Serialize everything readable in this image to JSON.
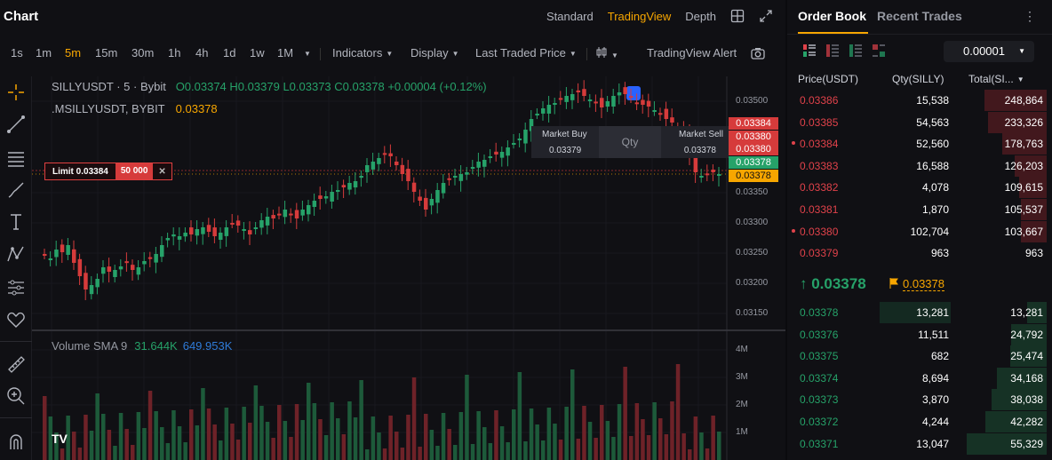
{
  "header": {
    "title": "Chart",
    "views": [
      "Standard",
      "TradingView",
      "Depth"
    ],
    "active_view": "TradingView"
  },
  "toolbar": {
    "timeframes": [
      "1s",
      "1m",
      "5m",
      "15m",
      "30m",
      "1h",
      "4h",
      "1d",
      "1w",
      "1M"
    ],
    "active_timeframe": "5m",
    "indicators": "Indicators",
    "display": "Display",
    "price_type": "Last Traded Price",
    "alert": "TradingView Alert"
  },
  "legend": {
    "symbol": "SILLYUSDT · 5 · Bybit",
    "o": "O0.03374",
    "h": "H0.03379",
    "l": "L0.03373",
    "c": "C0.03378",
    "change": "+0.00004 (+0.12%)",
    "mark_symbol": ".MSILLYUSDT, BYBIT",
    "mark_value": "0.03378"
  },
  "volume": {
    "label": "Volume SMA 9",
    "v1": "31.644K",
    "v2": "649.953K"
  },
  "price_axis": [
    "0.03500",
    "0.03350",
    "0.03300",
    "0.03250",
    "0.03200",
    "0.03150"
  ],
  "volume_axis": [
    "4M",
    "3M",
    "2M",
    "1M"
  ],
  "price_tags": [
    {
      "value": "0.03384",
      "color": "#d63b3b"
    },
    {
      "value": "0.03380",
      "color": "#d63b3b"
    },
    {
      "value": "0.03380",
      "color": "#d63b3b"
    },
    {
      "value": "0.03378",
      "color": "#26a269"
    },
    {
      "value": "0.03378",
      "color": "#f7a600"
    }
  ],
  "limit_order": {
    "label": "Limit 0.03384",
    "qty": "50 000",
    "close": "✕"
  },
  "trade_widget": {
    "buy_label": "Market Buy",
    "buy_price": "0.03379",
    "qty_placeholder": "Qty",
    "sell_label": "Market Sell",
    "sell_price": "0.03378"
  },
  "tv_logo": "TV",
  "order_book": {
    "tabs": [
      "Order Book",
      "Recent Trades"
    ],
    "more": "⋮",
    "tick_size": "0.00001",
    "headers": {
      "price": "Price(USDT)",
      "qty": "Qty(SILLY)",
      "total": "Total(SI..."
    },
    "asks": [
      {
        "price": "0.03386",
        "qty": "15,538",
        "total": "248,864",
        "depth": 1.0,
        "dot": false
      },
      {
        "price": "0.03385",
        "qty": "54,563",
        "total": "233,326",
        "depth": 0.94,
        "dot": false
      },
      {
        "price": "0.03384",
        "qty": "52,560",
        "total": "178,763",
        "depth": 0.72,
        "dot": true
      },
      {
        "price": "0.03383",
        "qty": "16,588",
        "total": "126,203",
        "depth": 0.51,
        "dot": false
      },
      {
        "price": "0.03382",
        "qty": "4,078",
        "total": "109,615",
        "depth": 0.44,
        "dot": false
      },
      {
        "price": "0.03381",
        "qty": "1,870",
        "total": "105,537",
        "depth": 0.42,
        "dot": false
      },
      {
        "price": "0.03380",
        "qty": "102,704",
        "total": "103,667",
        "depth": 0.42,
        "dot": true
      },
      {
        "price": "0.03379",
        "qty": "963",
        "total": "963",
        "depth": 0.0,
        "dot": false
      }
    ],
    "last_price": "↑ 0.03378",
    "mark_price": "0.03378",
    "bids": [
      {
        "price": "0.03378",
        "qty": "13,281",
        "total": "13,281",
        "depth": 0.24,
        "qdepth": 1.0
      },
      {
        "price": "0.03376",
        "qty": "11,511",
        "total": "24,792",
        "depth": 0.45,
        "qdepth": 0.0
      },
      {
        "price": "0.03375",
        "qty": "682",
        "total": "25,474",
        "depth": 0.46,
        "qdepth": 0.0
      },
      {
        "price": "0.03374",
        "qty": "8,694",
        "total": "34,168",
        "depth": 0.62,
        "qdepth": 0.0
      },
      {
        "price": "0.03373",
        "qty": "3,870",
        "total": "38,038",
        "depth": 0.69,
        "qdepth": 0.0
      },
      {
        "price": "0.03372",
        "qty": "4,244",
        "total": "42,282",
        "depth": 0.77,
        "qdepth": 0.0
      },
      {
        "price": "0.03371",
        "qty": "13,047",
        "total": "55,329",
        "depth": 1.0,
        "qdepth": 0.0
      }
    ]
  }
}
